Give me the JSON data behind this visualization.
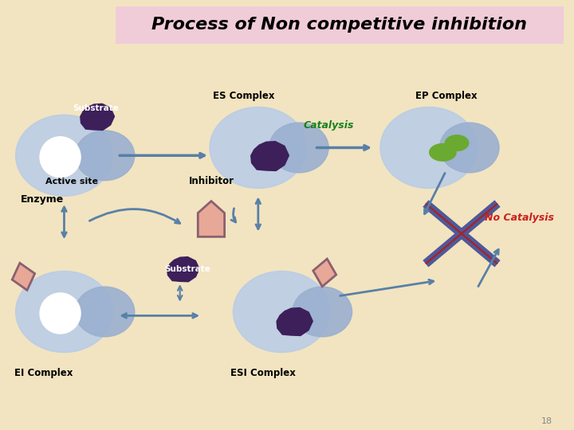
{
  "title": "Process of Non competitive inhibition",
  "bg_color": "#f2e4c0",
  "title_bg": "#f0ccd8",
  "enzyme_color": "#9bafd0",
  "enzyme_color2": "#b8cce8",
  "active_site_color": "#e8e8f8",
  "active_site_white": "#ffffff",
  "substrate_color": "#3d1f5a",
  "inhibitor_color": "#e8a898",
  "inhibitor_stroke": "#8a6070",
  "product_color": "#6aaa30",
  "arrow_color": "#5880a8",
  "no_catalysis_color": "#505898",
  "no_catalysis_line2": "#aa2020",
  "no_catalysis_text_color": "#cc2020",
  "text_color": "#000000",
  "catalysis_text_color": "#1a8020",
  "labels": {
    "es_complex": "ES Complex",
    "ep_complex": "EP Complex",
    "catalysis": "Catalysis",
    "no_catalysis": "No Catalysis",
    "inhibitor": "Inhibitor",
    "substrate": "Substrate",
    "active_site": "Active site",
    "enzyme": "Enzyme",
    "ei_complex": "EI Complex",
    "esi_complex": "ESI Complex"
  },
  "page_number": "18"
}
